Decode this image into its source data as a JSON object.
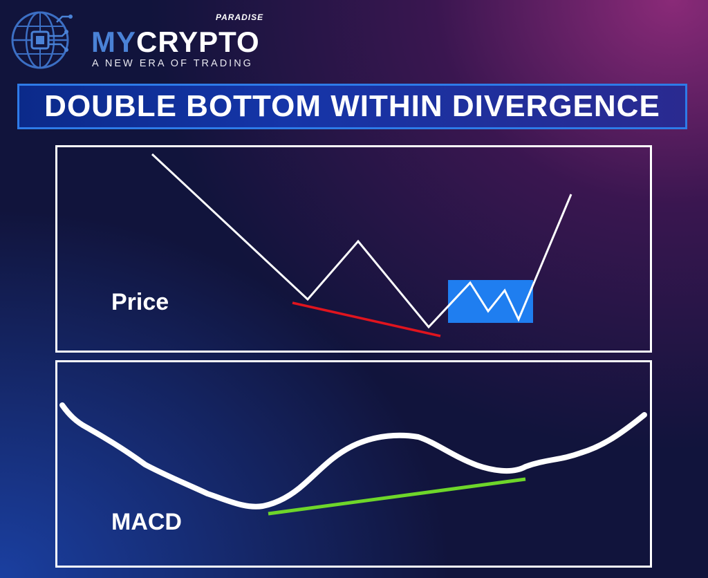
{
  "brand": {
    "name_part1": "MY",
    "name_part2": "CRYPTO",
    "superscript": "PARADISE",
    "tagline": "A NEW ERA OF TRADING"
  },
  "title": "DOUBLE BOTTOM WITHIN DIVERGENCE",
  "panels": {
    "price": {
      "label": "Price"
    },
    "macd": {
      "label": "MACD"
    }
  },
  "colors": {
    "title_border": "#2e7be8",
    "price_line": "#ffffff",
    "price_trendline": "#e0141e",
    "pattern_box": "#1f7ef0",
    "macd_line": "#ffffff",
    "macd_trendline": "#6ed62a"
  },
  "icons": {
    "logo": "globe-circuit-icon"
  }
}
